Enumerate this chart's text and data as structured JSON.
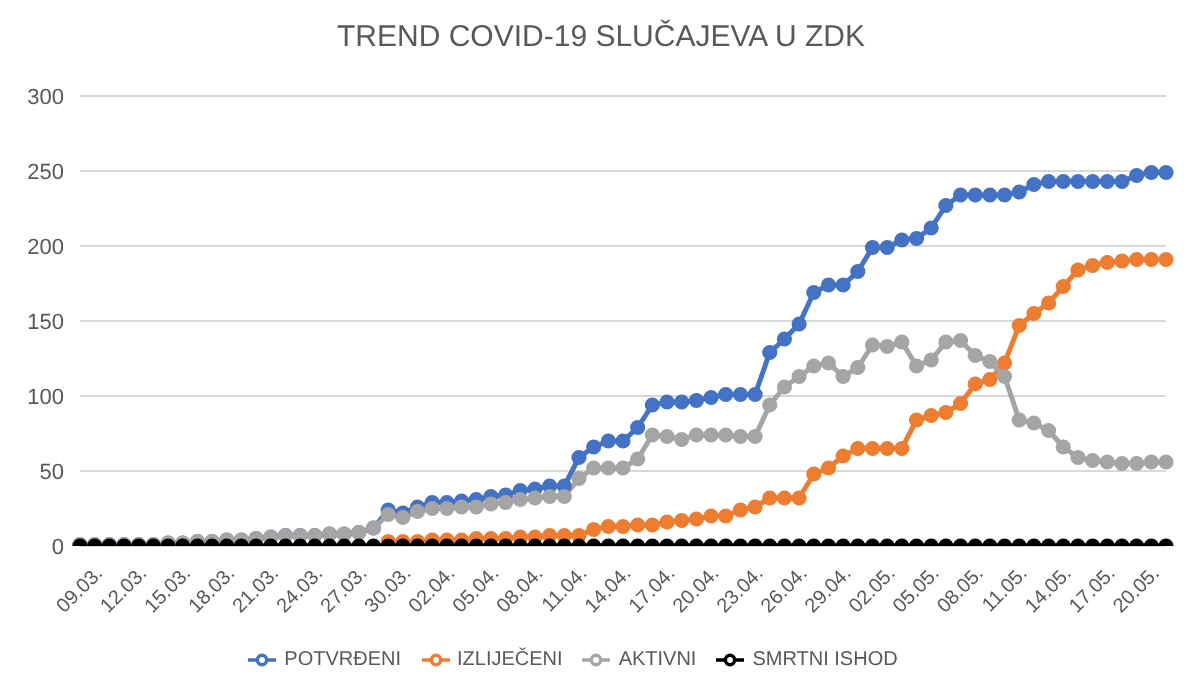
{
  "chart_data": {
    "type": "line",
    "title": "TREND COVID-19 SLUČAJEVA U ZDK",
    "categories": [
      "09.03.",
      null,
      null,
      "12.03.",
      null,
      null,
      "15.03.",
      null,
      null,
      "18.03.",
      null,
      null,
      "21.03.",
      null,
      null,
      "24.03.",
      null,
      null,
      "27.03.",
      null,
      null,
      "30.03.",
      null,
      null,
      "02.04.",
      null,
      null,
      "05.04.",
      null,
      null,
      "08.04.",
      null,
      null,
      "11.04.",
      null,
      null,
      "14.04.",
      null,
      null,
      "17.04.",
      null,
      null,
      "20.04.",
      null,
      null,
      "23.04.",
      null,
      null,
      "26.04.",
      null,
      null,
      "29.04.",
      null,
      null,
      "02.05.",
      null,
      null,
      "05.05.",
      null,
      null,
      "08.05.",
      null,
      null,
      "11.05.",
      null,
      null,
      "14.05.",
      null,
      null,
      "17.05.",
      null,
      null,
      "20.05.",
      null,
      null
    ],
    "series": [
      {
        "name": "POTVRĐENI",
        "color": "#4472c4",
        "values": [
          1,
          1,
          1,
          1,
          1,
          1,
          2,
          2,
          3,
          3,
          4,
          4,
          5,
          6,
          7,
          7,
          7,
          8,
          8,
          9,
          12,
          24,
          22,
          26,
          29,
          29,
          30,
          31,
          33,
          34,
          37,
          38,
          40,
          40,
          59,
          66,
          70,
          70,
          79,
          94,
          96,
          96,
          97,
          99,
          101,
          101,
          101,
          129,
          138,
          148,
          169,
          174,
          174,
          183,
          199,
          199,
          204,
          205,
          212,
          227,
          234,
          234,
          234,
          234,
          236,
          241,
          243,
          243,
          243,
          243,
          243,
          243,
          247,
          249,
          249
        ]
      },
      {
        "name": "IZLIJEČENI",
        "color": "#ed7d31",
        "values": [
          null,
          null,
          null,
          null,
          null,
          null,
          null,
          null,
          null,
          null,
          null,
          null,
          null,
          null,
          null,
          null,
          null,
          null,
          null,
          null,
          null,
          3,
          3,
          3,
          4,
          4,
          4,
          5,
          5,
          5,
          6,
          6,
          7,
          7,
          7,
          11,
          13,
          13,
          14,
          14,
          16,
          17,
          18,
          20,
          20,
          24,
          26,
          32,
          32,
          32,
          48,
          52,
          60,
          65,
          65,
          65,
          65,
          84,
          87,
          89,
          95,
          108,
          111,
          122,
          147,
          155,
          162,
          173,
          184,
          187,
          189,
          190,
          191,
          191,
          191
        ]
      },
      {
        "name": "AKTIVNI",
        "color": "#a5a5a5",
        "values": [
          1,
          1,
          1,
          1,
          1,
          1,
          2,
          2,
          3,
          3,
          4,
          4,
          5,
          6,
          7,
          7,
          7,
          8,
          8,
          9,
          12,
          21,
          19,
          23,
          25,
          25,
          26,
          26,
          28,
          29,
          31,
          32,
          33,
          33,
          45,
          52,
          52,
          52,
          58,
          74,
          73,
          71,
          74,
          74,
          74,
          73,
          73,
          94,
          106,
          113,
          120,
          122,
          113,
          119,
          134,
          133,
          136,
          120,
          124,
          136,
          137,
          127,
          123,
          113,
          84,
          82,
          77,
          66,
          59,
          57,
          56,
          55,
          55,
          56,
          56
        ]
      },
      {
        "name": "SMRTNI ISHOD",
        "color": "#000000",
        "values": [
          0,
          0,
          0,
          0,
          0,
          0,
          0,
          0,
          0,
          0,
          0,
          0,
          0,
          0,
          0,
          0,
          0,
          0,
          0,
          0,
          0,
          0,
          0,
          0,
          0,
          0,
          0,
          0,
          0,
          0,
          0,
          0,
          0,
          0,
          0,
          0,
          0,
          0,
          0,
          0,
          0,
          0,
          0,
          0,
          0,
          0,
          0,
          0,
          0,
          0,
          0,
          0,
          0,
          0,
          0,
          0,
          0,
          0,
          0,
          0,
          0,
          0,
          0,
          0,
          0,
          0,
          0,
          0,
          0,
          0,
          0,
          0,
          0,
          0,
          0
        ]
      }
    ],
    "ylim": [
      0,
      300
    ],
    "yticks": [
      0,
      50,
      100,
      150,
      200,
      250,
      300
    ],
    "grid": "y",
    "legend": "bottom",
    "marker": "circle",
    "line_style": "solid"
  }
}
